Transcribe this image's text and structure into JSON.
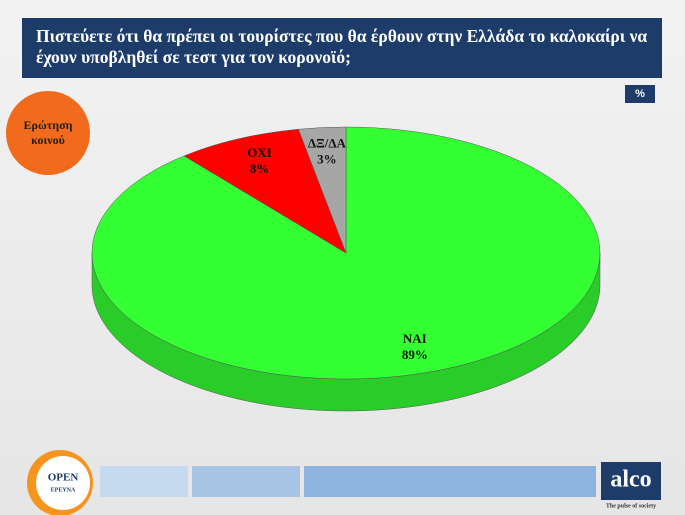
{
  "chart_data": {
    "type": "pie3d",
    "title": "Πιστεύετε ότι θα πρέπει οι τουρίστες που θα έρθουν στην Ελλάδα το καλοκαίρι να έχουν υποβληθεί σε τεστ για τον κορονοϊό;",
    "unit_label": "%",
    "categories": [
      "ΝΑΙ",
      "ΟΧΙ",
      "ΔΞ/ΔΑ"
    ],
    "values": [
      89,
      8,
      3
    ],
    "value_labels": [
      "89%",
      "8%",
      "3%"
    ],
    "colors": [
      "#33ff33",
      "#ff0000",
      "#a6a6a6"
    ]
  },
  "badge": [
    "Ερώτηση",
    "κοινού"
  ],
  "footer": {
    "left_logo": "OPEN",
    "left_logo_sub": "ΕΡΕΥΝΑ",
    "right_logo": "alco",
    "right_tagline": "The pulse of society"
  }
}
